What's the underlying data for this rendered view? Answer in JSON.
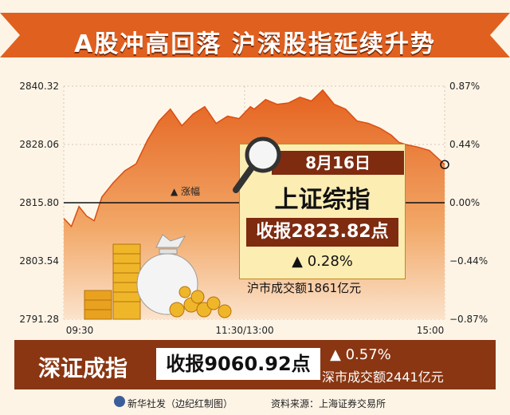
{
  "header": {
    "title": "A股冲高回落 沪深股指延续升势"
  },
  "chart_data": {
    "type": "area",
    "index": "上证综指",
    "ylim": [
      2791.28,
      2840.32
    ],
    "y_ticks": [
      "2840.32",
      "2828.06",
      "2815.80",
      "2803.54",
      "2791.28"
    ],
    "y2_ticks": [
      "0.87%",
      "0.44%",
      "0.00%",
      "−0.44%",
      "−0.87%"
    ],
    "x_ticks": [
      "09:30",
      "11:30/13:00",
      "15:00"
    ],
    "baseline": 2815.8,
    "baseline_label": "▲ 涨幅",
    "x": [
      0,
      0.02,
      0.04,
      0.06,
      0.08,
      0.1,
      0.13,
      0.16,
      0.19,
      0.22,
      0.25,
      0.28,
      0.31,
      0.34,
      0.37,
      0.4,
      0.43,
      0.46,
      0.49,
      0.5,
      0.53,
      0.56,
      0.59,
      0.62,
      0.65,
      0.68,
      0.71,
      0.74,
      0.77,
      0.8,
      0.83,
      0.86,
      0.88,
      0.9,
      0.93,
      0.96,
      1.0
    ],
    "values": [
      2812.5,
      2810.8,
      2815.0,
      2813.0,
      2812.0,
      2817.0,
      2820.0,
      2822.5,
      2824.0,
      2829.0,
      2833.0,
      2835.5,
      2832.0,
      2834.5,
      2836.0,
      2832.5,
      2834.0,
      2833.5,
      2836.0,
      2835.5,
      2837.5,
      2836.5,
      2836.8,
      2838.0,
      2837.2,
      2839.5,
      2836.5,
      2835.5,
      2833.0,
      2832.5,
      2831.5,
      2830.0,
      2828.5,
      2828.0,
      2827.5,
      2826.8,
      2823.82
    ]
  },
  "info": {
    "date": "8月16日",
    "name": "上证综指",
    "close": "收报2823.82点",
    "change": "▲ 0.28%",
    "volume": "沪市成交额1861亿元"
  },
  "sz": {
    "name": "深证成指",
    "close": "收报9060.92点",
    "change": "▲ 0.57%",
    "volume": "深市成交额2441亿元"
  },
  "footer": {
    "agency": "新华社发（边纪红制图）",
    "source": "资料来源：上海证券交易所"
  },
  "colors": {
    "area_top": "#e5621f",
    "area_bottom": "#fbe3cc",
    "banner": "#e0601f",
    "bar": "#8a3612"
  }
}
